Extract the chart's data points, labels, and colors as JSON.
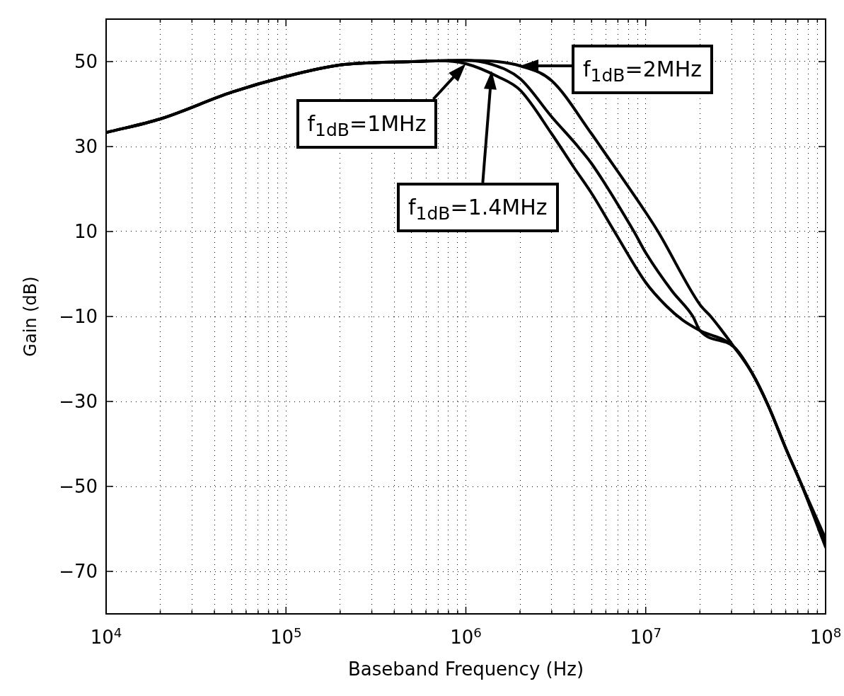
{
  "chart_data": {
    "type": "line",
    "xlabel": "Baseband Frequency (Hz)",
    "ylabel": "Gain (dB)",
    "log": "x",
    "grid": true,
    "line_style": "solid",
    "marker": "none",
    "xlim": [
      10000,
      100000000
    ],
    "xticks": [
      {
        "value": 10000,
        "label": "10$^{4}$"
      },
      {
        "value": 20000,
        "label": null
      },
      {
        "value": 30000,
        "label": null
      },
      {
        "value": 40000,
        "label": null
      },
      {
        "value": 50000,
        "label": null
      },
      {
        "value": 60000,
        "label": null
      },
      {
        "value": 70000,
        "label": null
      },
      {
        "value": 80000,
        "label": null
      },
      {
        "value": 90000,
        "label": null
      },
      {
        "value": 100000,
        "label": "10$^{5}$"
      },
      {
        "value": 200000,
        "label": null
      },
      {
        "value": 300000,
        "label": null
      },
      {
        "value": 400000,
        "label": null
      },
      {
        "value": 500000,
        "label": null
      },
      {
        "value": 600000,
        "label": null
      },
      {
        "value": 700000,
        "label": null
      },
      {
        "value": 800000,
        "label": null
      },
      {
        "value": 900000,
        "label": null
      },
      {
        "value": 1000000,
        "label": "10$^{6}$"
      },
      {
        "value": 2000000,
        "label": null
      },
      {
        "value": 3000000,
        "label": null
      },
      {
        "value": 4000000,
        "label": null
      },
      {
        "value": 5000000,
        "label": null
      },
      {
        "value": 6000000,
        "label": null
      },
      {
        "value": 7000000,
        "label": null
      },
      {
        "value": 8000000,
        "label": null
      },
      {
        "value": 9000000,
        "label": null
      },
      {
        "value": 10000000,
        "label": "10$^{7}$"
      },
      {
        "value": 20000000,
        "label": null
      },
      {
        "value": 30000000,
        "label": null
      },
      {
        "value": 40000000,
        "label": null
      },
      {
        "value": 50000000,
        "label": null
      },
      {
        "value": 60000000,
        "label": null
      },
      {
        "value": 70000000,
        "label": null
      },
      {
        "value": 80000000,
        "label": null
      },
      {
        "value": 90000000,
        "label": null
      },
      {
        "value": 100000000,
        "label": "10$^{8}$"
      }
    ],
    "ylim": [
      -80,
      60
    ],
    "yticks": [
      -70,
      -50,
      -30,
      -10,
      10,
      30,
      50
    ],
    "series": [
      {
        "color": "#000000",
        "x": [
          10000,
          20000,
          50000,
          100000,
          200000,
          500000,
          700000,
          1000000,
          1500000,
          2000000,
          3000000,
          4000000,
          5000000,
          6700000,
          10000000,
          13000000,
          16000000,
          20000000,
          31000000,
          39000000,
          48000000,
          60000000,
          73000000,
          100000000
        ],
        "values": [
          33.3,
          36.5,
          42.8,
          46.5,
          49.2,
          50,
          50.2,
          49.5,
          46.5,
          43.3,
          33,
          25,
          19,
          10,
          -2,
          -7.5,
          -10.8,
          -13.3,
          -17.2,
          -23.3,
          -31,
          -41,
          -49.3,
          -63.3
        ]
      },
      {
        "color": "#000000",
        "x": [
          10000,
          20000,
          50000,
          100000,
          200000,
          500000,
          1000000,
          1400000,
          2000000,
          3000000,
          4200000,
          5000000,
          8600000,
          10000000,
          14000000,
          18300000,
          20000000,
          31000000,
          39000000,
          48000000,
          60000000,
          73000000,
          100000000
        ],
        "values": [
          33.3,
          36.5,
          42.8,
          46.5,
          49.2,
          50,
          50.3,
          49.3,
          46,
          37,
          30,
          26,
          10,
          5,
          -4,
          -10,
          -13.3,
          -17.2,
          -23.3,
          -31,
          -41,
          -49.3,
          -62.3
        ]
      },
      {
        "color": "#000000",
        "x": [
          10000,
          20000,
          50000,
          100000,
          200000,
          500000,
          1000000,
          1500000,
          2000000,
          3000000,
          5000000,
          5600000,
          10000000,
          11700000,
          20000000,
          23000000,
          31000000,
          39000000,
          48000000,
          60000000,
          73000000,
          100000000
        ],
        "values": [
          33.3,
          36.5,
          42.8,
          46.5,
          49.2,
          50,
          50.3,
          50,
          49,
          45.5,
          33,
          30,
          14.5,
          10,
          -7.2,
          -10,
          -17.2,
          -23.3,
          -31,
          -41,
          -49.3,
          -64.3
        ]
      }
    ],
    "annotations": [
      {
        "text": "f$_{1dB}$=1MHz",
        "x": 1000000,
        "y": 49.5
      },
      "f$_{1dB}$=1.4MHz",
      {
        "text": "f$_{1dB}$=2MHz",
        "x": 2000000,
        "y": 49
      }
    ]
  }
}
